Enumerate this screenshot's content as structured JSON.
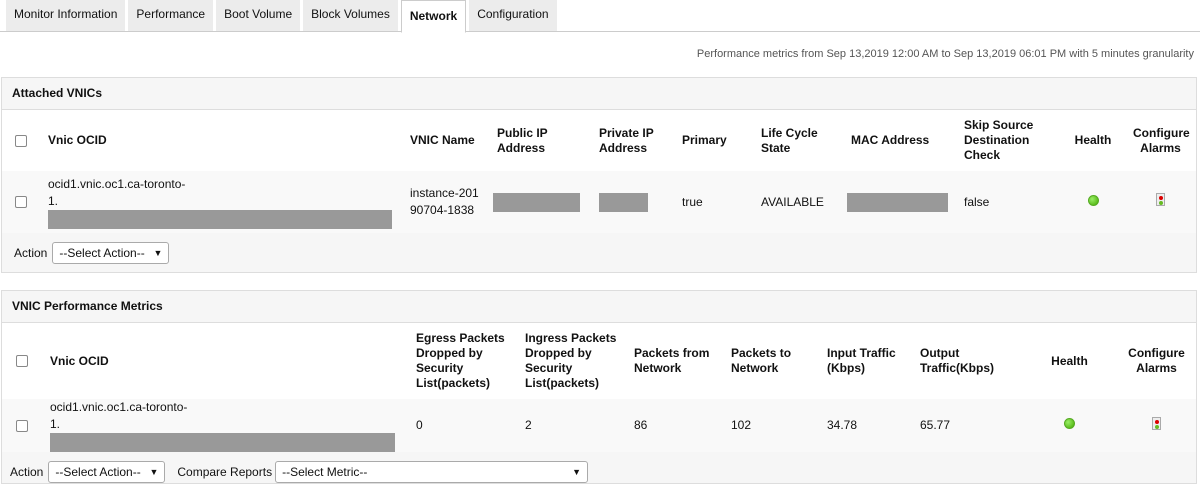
{
  "tabs": [
    "Monitor Information",
    "Performance",
    "Boot Volume",
    "Block Volumes",
    "Network",
    "Configuration"
  ],
  "active_tab": "Network",
  "metric_note": "Performance metrics from Sep 13,2019 12:00 AM to Sep 13,2019 06:01 PM with 5 minutes granularity",
  "vnics": {
    "title": "Attached VNICs",
    "headers": [
      "Vnic OCID",
      "VNIC Name",
      "Public IP Address",
      "Private IP Address",
      "Primary",
      "Life Cycle State",
      "MAC Address",
      "Skip Source Destination Check",
      "Health",
      "Configure Alarms"
    ],
    "row": {
      "ocid_line1": "ocid1.vnic.oc1.ca-toronto-",
      "ocid_line2": "1.",
      "name": "instance-20190704-1838",
      "primary": "true",
      "state": "AVAILABLE",
      "skip_check": "false",
      "health": "green"
    },
    "action_label": "Action",
    "action_select": "--Select Action--"
  },
  "metrics": {
    "title": "VNIC Performance Metrics",
    "headers": [
      "Vnic OCID",
      "Egress Packets Dropped by Security List(packets)",
      "Ingress Packets Dropped by Security List(packets)",
      "Packets from Network",
      "Packets to Network",
      "Input Traffic (Kbps)",
      "Output Traffic(Kbps)",
      "Health",
      "Configure Alarms"
    ],
    "row": {
      "ocid_line1": "ocid1.vnic.oc1.ca-toronto-",
      "ocid_line2": "1.",
      "egress": "0",
      "ingress": "2",
      "from": "86",
      "to": "102",
      "input": "34.78",
      "output": "65.77",
      "health": "green"
    },
    "action_label": "Action",
    "action_select": "--Select Action--",
    "compare_label": "Compare Reports",
    "metric_select": "--Select Metric--"
  }
}
